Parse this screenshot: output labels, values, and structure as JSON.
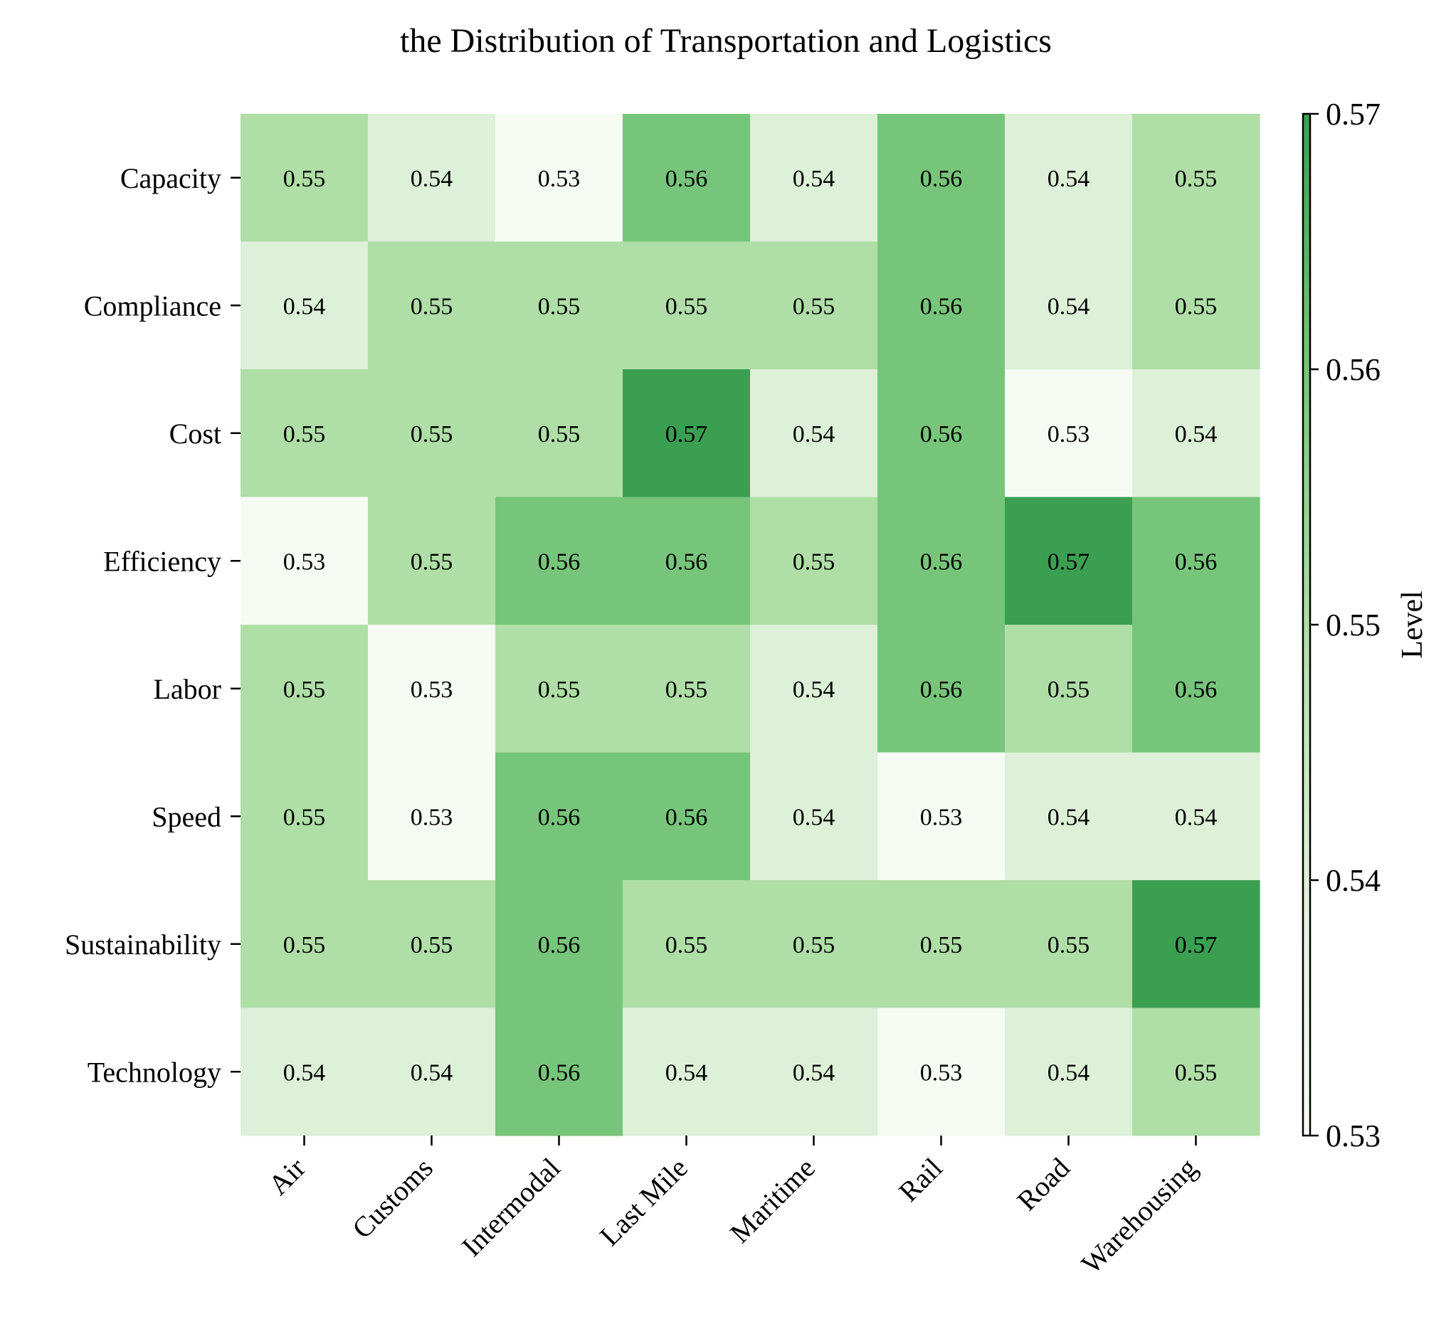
{
  "chart_data": {
    "type": "heatmap",
    "title": "the Distribution of Transportation and Logistics",
    "columns": [
      "Air",
      "Customs",
      "Intermodal",
      "Last Mile",
      "Maritime",
      "Rail",
      "Road",
      "Warehousing"
    ],
    "rows": [
      "Capacity",
      "Compliance",
      "Cost",
      "Efficiency",
      "Labor",
      "Speed",
      "Sustainability",
      "Technology"
    ],
    "values": [
      [
        0.55,
        0.54,
        0.53,
        0.56,
        0.54,
        0.56,
        0.54,
        0.55
      ],
      [
        0.54,
        0.55,
        0.55,
        0.55,
        0.55,
        0.56,
        0.54,
        0.55
      ],
      [
        0.55,
        0.55,
        0.55,
        0.57,
        0.54,
        0.56,
        0.53,
        0.54
      ],
      [
        0.53,
        0.55,
        0.56,
        0.56,
        0.55,
        0.56,
        0.57,
        0.56
      ],
      [
        0.55,
        0.53,
        0.55,
        0.55,
        0.54,
        0.56,
        0.55,
        0.56
      ],
      [
        0.55,
        0.53,
        0.56,
        0.56,
        0.54,
        0.53,
        0.54,
        0.54
      ],
      [
        0.55,
        0.55,
        0.56,
        0.55,
        0.55,
        0.55,
        0.55,
        0.57
      ],
      [
        0.54,
        0.54,
        0.56,
        0.54,
        0.54,
        0.53,
        0.54,
        0.55
      ]
    ],
    "colorbar": {
      "label": "Level",
      "range": [
        0.53,
        0.57
      ],
      "ticks": [
        "0.53",
        "0.54",
        "0.55",
        "0.56",
        "0.57"
      ],
      "colors": {
        "0.53": "#f6fbf4",
        "0.54": "#ddf0d8",
        "0.55": "#afdea6",
        "0.56": "#77c57a",
        "0.57": "#3b9f52"
      }
    },
    "grid": false
  }
}
